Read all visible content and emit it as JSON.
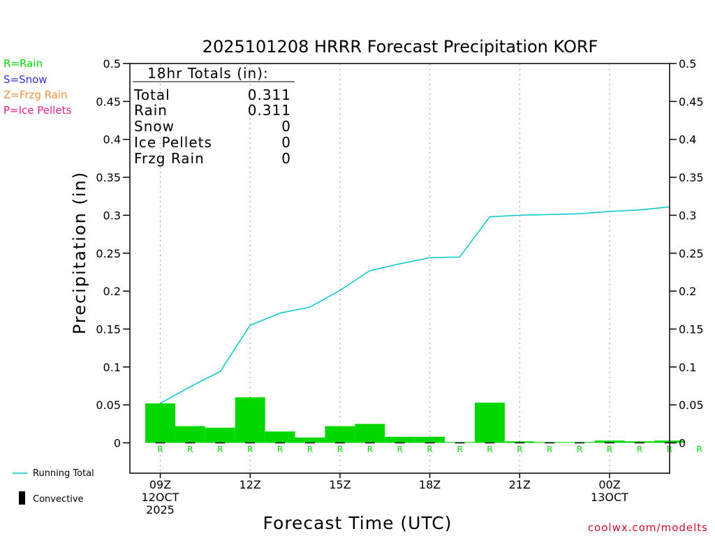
{
  "chart_data": {
    "type": "bar",
    "title": "2025101208 HRRR Forecast Precipitation KORF",
    "xlabel": "Forecast Time (UTC)",
    "ylabel": "Precipitation (in)",
    "ylim": [
      -0.04,
      0.5
    ],
    "y_ticks": [
      0,
      0.05,
      0.1,
      0.15,
      0.2,
      0.25,
      0.3,
      0.35,
      0.4,
      0.45,
      0.5
    ],
    "y_tick_labels": [
      "0",
      "0.05",
      "0.1",
      "0.15",
      "0.2",
      "0.25",
      "0.3",
      "0.35",
      "0.4",
      "0.45",
      "0.5"
    ],
    "grid": "dotted vertical at labeled times",
    "hours": [
      "09Z",
      "10Z",
      "11Z",
      "12Z",
      "13Z",
      "14Z",
      "15Z",
      "16Z",
      "17Z",
      "18Z",
      "19Z",
      "20Z",
      "21Z",
      "22Z",
      "23Z",
      "00Z",
      "01Z",
      "02Z",
      "03Z"
    ],
    "x_tick_labels": [
      {
        "hour_index": 0,
        "lines": [
          "09Z",
          "12OCT",
          "2025"
        ]
      },
      {
        "hour_index": 3,
        "lines": [
          "12Z"
        ]
      },
      {
        "hour_index": 6,
        "lines": [
          "15Z"
        ]
      },
      {
        "hour_index": 9,
        "lines": [
          "18Z"
        ]
      },
      {
        "hour_index": 12,
        "lines": [
          "21Z"
        ]
      },
      {
        "hour_index": 15,
        "lines": [
          "00Z",
          "13OCT"
        ]
      }
    ],
    "series": [
      {
        "name": "Hourly Precipitation",
        "kind": "bar",
        "color": "#00d800",
        "values": [
          0.052,
          0.022,
          0.02,
          0.06,
          0.015,
          0.007,
          0.022,
          0.025,
          0.008,
          0.008,
          0.001,
          0.053,
          0.002,
          0.001,
          0.001,
          0.003,
          0.002,
          0.003
        ]
      },
      {
        "name": "Running Total",
        "kind": "line",
        "color": "#00c8c8",
        "values": [
          0.052,
          0.074,
          0.094,
          0.155,
          0.171,
          0.179,
          0.201,
          0.227,
          0.236,
          0.244,
          0.245,
          0.298,
          0.3,
          0.301,
          0.302,
          0.305,
          0.307,
          0.311
        ]
      },
      {
        "name": "Convective",
        "kind": "bar",
        "color": "#000000",
        "values": [
          0,
          0,
          0,
          0,
          0,
          0,
          0,
          0,
          0,
          0,
          0,
          0,
          0,
          0,
          0,
          0,
          0,
          0
        ]
      }
    ],
    "precip_type_markers": [
      "R",
      "R",
      "R",
      "R",
      "R",
      "R",
      "R",
      "R",
      "R",
      "R",
      "R",
      "R",
      "R",
      "R",
      "R",
      "R",
      "R",
      "R",
      "R"
    ],
    "totals_box": {
      "heading": "18hr Totals (in):",
      "rows": [
        {
          "label": "Total",
          "value": "0.311"
        },
        {
          "label": "Rain",
          "value": "0.311"
        },
        {
          "label": "Snow",
          "value": "0"
        },
        {
          "label": "Ice Pellets",
          "value": "0"
        },
        {
          "label": "Frzg Rain",
          "value": "0"
        }
      ]
    },
    "type_legend": [
      {
        "text": "R=Rain",
        "color": "#00d800"
      },
      {
        "text": "S=Snow",
        "color": "#3030e0"
      },
      {
        "text": "Z=Frzg Rain",
        "color": "#f09040"
      },
      {
        "text": "P=Ice Pellets",
        "color": "#e0208c"
      }
    ],
    "series_legend": [
      {
        "text": "Running Total",
        "color": "#00c8c8",
        "symbol": "line"
      },
      {
        "text": "Convective",
        "color": "#000000",
        "symbol": "box"
      }
    ],
    "credit": "coolwx.com/modelts",
    "credit_color": "#c8102e"
  }
}
